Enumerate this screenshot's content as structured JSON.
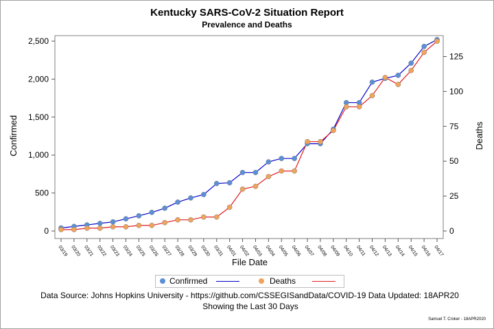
{
  "title": "Kentucky SARS-CoV-2 Situation Report",
  "subtitle": "Prevalence and Deaths",
  "footer_source": "Data Source: Johns Hopkins University - https://github.com/CSSEGISandData/COVID-19 Data Updated: 18APR20",
  "footer_window": "Showing the Last 30 Days",
  "credit": "Samuel T. Croker - 18APR2020",
  "legend": {
    "confirmed": "Confirmed",
    "deaths": "Deaths"
  },
  "colors": {
    "confirmed_marker": "#5b8fd6",
    "confirmed_line": "#0000cc",
    "deaths_marker": "#f0a35a",
    "deaths_line": "#e41a1c"
  },
  "chart_data": {
    "type": "line",
    "xlabel": "File Date",
    "ylabel_left": "Confirmed",
    "ylabel_right": "Deaths",
    "ylim_left": [
      0,
      2500
    ],
    "ylim_right": [
      0,
      135
    ],
    "yticks_left": [
      "0",
      "500",
      "1,000",
      "1,500",
      "2,000",
      "2,500"
    ],
    "yticks_right": [
      "0",
      "25",
      "50",
      "75",
      "100",
      "125"
    ],
    "grid": false,
    "legend_position": "bottom",
    "x": [
      "03/19",
      "03/20",
      "03/21",
      "03/22",
      "03/23",
      "03/24",
      "03/25",
      "03/26",
      "03/27",
      "03/28",
      "03/29",
      "03/30",
      "03/31",
      "04/01",
      "04/02",
      "04/03",
      "04/04",
      "04/05",
      "04/06",
      "04/07",
      "04/08",
      "04/09",
      "04/10",
      "04/11",
      "04/12",
      "04/13",
      "04/14",
      "04/15",
      "04/16",
      "04/17"
    ],
    "series": [
      {
        "name": "Confirmed",
        "axis": "left",
        "values": [
          40,
          60,
          80,
          100,
          120,
          160,
          200,
          245,
          300,
          380,
          435,
          480,
          625,
          635,
          770,
          770,
          910,
          955,
          955,
          1150,
          1150,
          1340,
          1690,
          1690,
          1960,
          2010,
          2050,
          2210,
          2430,
          2520
        ]
      },
      {
        "name": "Deaths",
        "axis": "right",
        "values": [
          1,
          1,
          2,
          2,
          3,
          3,
          4,
          4,
          6,
          8,
          8,
          10,
          10,
          17,
          30,
          32,
          39,
          43,
          43,
          64,
          64,
          72,
          89,
          89,
          97,
          110,
          105,
          115,
          128,
          136
        ]
      }
    ]
  }
}
